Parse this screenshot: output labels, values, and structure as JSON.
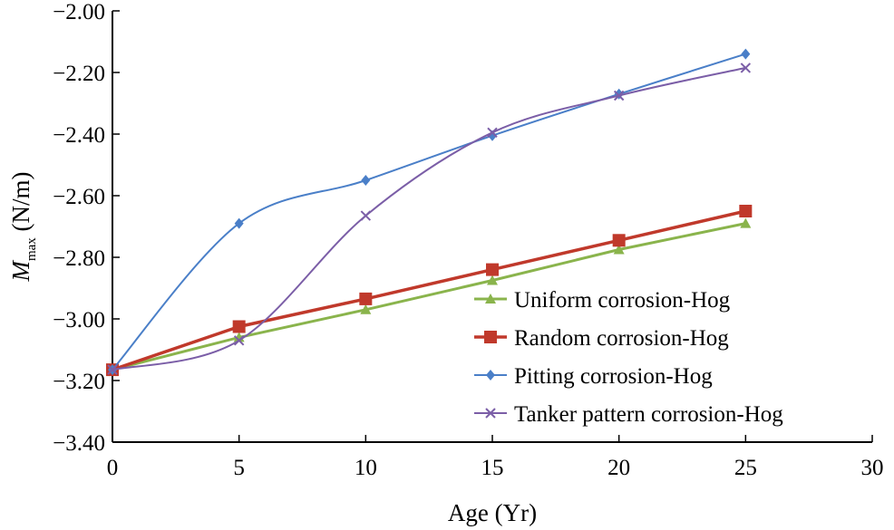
{
  "chart_data": {
    "type": "line",
    "title": "",
    "xlabel": "Age (Yr)",
    "ylabel": {
      "main": "M",
      "subscript": "max",
      "unit": " (N/m)"
    },
    "xlim": [
      0,
      30
    ],
    "ylim": [
      -3.4,
      -2.0
    ],
    "x_ticks": [
      "0",
      "5",
      "10",
      "15",
      "20",
      "25",
      "30"
    ],
    "y_ticks": [
      "-3.40",
      "-3.20",
      "-3.00",
      "-2.80",
      "-2.60",
      "-2.40",
      "-2.20",
      "-2.00"
    ],
    "x_tick_values": [
      0,
      5,
      10,
      15,
      20,
      25,
      30
    ],
    "y_tick_values": [
      -3.4,
      -3.2,
      -3.0,
      -2.8,
      -2.6,
      -2.4,
      -2.2,
      -2.0
    ],
    "x": [
      0,
      5,
      10,
      15,
      20,
      25
    ],
    "grid": false,
    "legend_position": "bottom-right",
    "series": [
      {
        "name": "Uniform corrosion-Hog",
        "color": "#8ab44c",
        "marker": "triangle",
        "smooth": false,
        "width": 3,
        "values": [
          -3.165,
          -3.06,
          -2.97,
          -2.875,
          -2.775,
          -2.69
        ]
      },
      {
        "name": "Random corrosion-Hog",
        "color": "#c0392b",
        "marker": "square",
        "smooth": false,
        "width": 3.5,
        "values": [
          -3.165,
          -3.025,
          -2.935,
          -2.84,
          -2.745,
          -2.65
        ]
      },
      {
        "name": "Pitting corrosion-Hog",
        "color": "#4a7fc8",
        "marker": "diamond",
        "smooth": true,
        "width": 2,
        "values": [
          -3.165,
          -2.69,
          -2.55,
          -2.405,
          -2.27,
          -2.14
        ]
      },
      {
        "name": "Tanker pattern corrosion-Hog",
        "color": "#7b5ea7",
        "marker": "x",
        "smooth": true,
        "width": 2,
        "values": [
          -3.165,
          -3.07,
          -2.665,
          -2.395,
          -2.275,
          -2.185
        ]
      }
    ]
  }
}
